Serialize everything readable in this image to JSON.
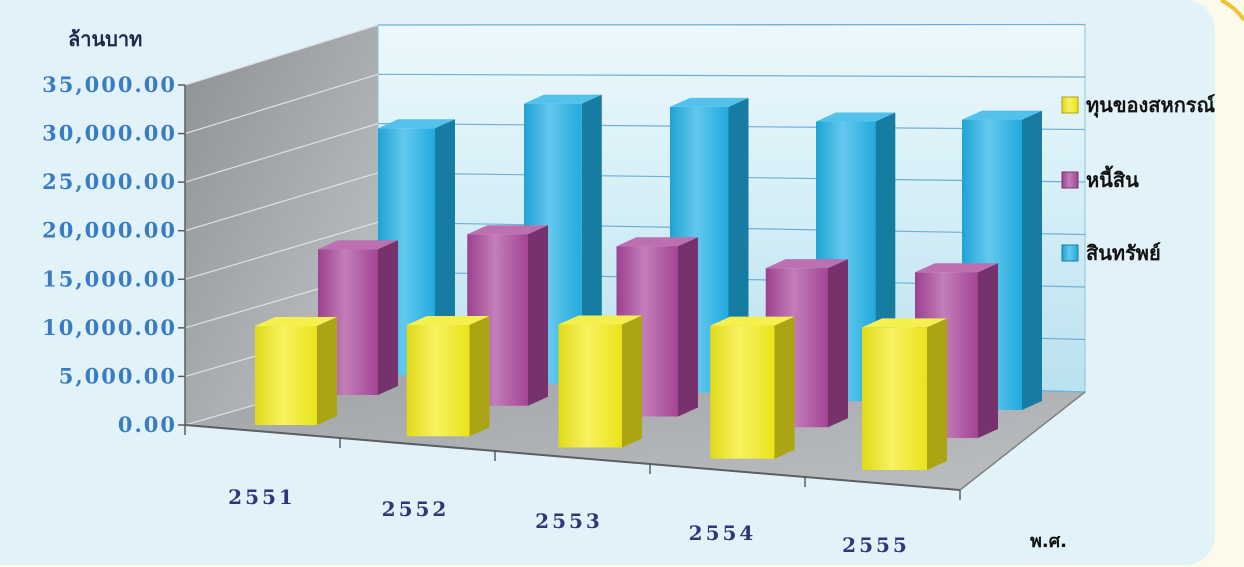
{
  "chart_data": {
    "type": "bar",
    "three_d": true,
    "categories": [
      "2551",
      "2552",
      "2553",
      "2554",
      "2555"
    ],
    "xlabel": "พ.ศ.",
    "ylabel": "ล้านบาท",
    "ylim": [
      0,
      35000
    ],
    "ytick_labels": [
      "0.00",
      "5,000.00",
      "10,000.00",
      "15,000.00",
      "20,000.00",
      "25,000.00",
      "30,000.00",
      "35,000.00"
    ],
    "grid": true,
    "legend_position": "right",
    "series": [
      {
        "name": "ทุนของสหกรณ์",
        "color": "#f4ec1c",
        "values": [
          10000,
          10800,
          11500,
          12000,
          12400
        ]
      },
      {
        "name": "หนี้สิน",
        "color": "#a9479b",
        "values": [
          14800,
          16900,
          16300,
          14800,
          15000
        ]
      },
      {
        "name": "สินทรัพย์",
        "color": "#21b1e6",
        "values": [
          24800,
          27700,
          27800,
          26800,
          27400
        ]
      }
    ]
  }
}
